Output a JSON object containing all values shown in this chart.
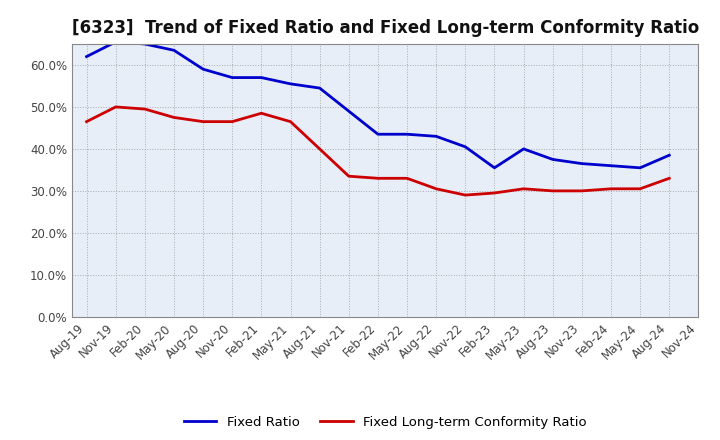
{
  "title": "[6323]  Trend of Fixed Ratio and Fixed Long-term Conformity Ratio",
  "x_labels": [
    "Aug-19",
    "Nov-19",
    "Feb-20",
    "May-20",
    "Aug-20",
    "Nov-20",
    "Feb-21",
    "May-21",
    "Aug-21",
    "Nov-21",
    "Feb-22",
    "May-22",
    "Aug-22",
    "Nov-22",
    "Feb-23",
    "May-23",
    "Aug-23",
    "Nov-23",
    "Feb-24",
    "May-24",
    "Aug-24",
    "Nov-24"
  ],
  "fixed_ratio": [
    62.0,
    65.5,
    65.0,
    63.5,
    59.0,
    57.0,
    57.0,
    55.5,
    54.5,
    49.0,
    43.5,
    43.5,
    43.0,
    40.5,
    35.5,
    40.0,
    37.5,
    36.5,
    36.0,
    35.5,
    38.5,
    null
  ],
  "fixed_lt_ratio": [
    46.5,
    50.0,
    49.5,
    47.5,
    46.5,
    46.5,
    48.5,
    46.5,
    40.0,
    33.5,
    33.0,
    33.0,
    30.5,
    29.0,
    29.5,
    30.5,
    30.0,
    30.0,
    30.5,
    30.5,
    33.0,
    null
  ],
  "fixed_ratio_color": "#0000CC",
  "fixed_lt_ratio_color": "#CC0000",
  "background_color": "#FFFFFF",
  "plot_bg_color": "#E8EEF8",
  "grid_color": "#999999",
  "ylim": [
    0,
    65
  ],
  "yticks": [
    0,
    10,
    20,
    30,
    40,
    50,
    60
  ],
  "legend_fixed_ratio": "Fixed Ratio",
  "legend_fixed_lt_ratio": "Fixed Long-term Conformity Ratio",
  "title_fontsize": 12,
  "axis_fontsize": 8.5,
  "legend_fontsize": 9.5
}
